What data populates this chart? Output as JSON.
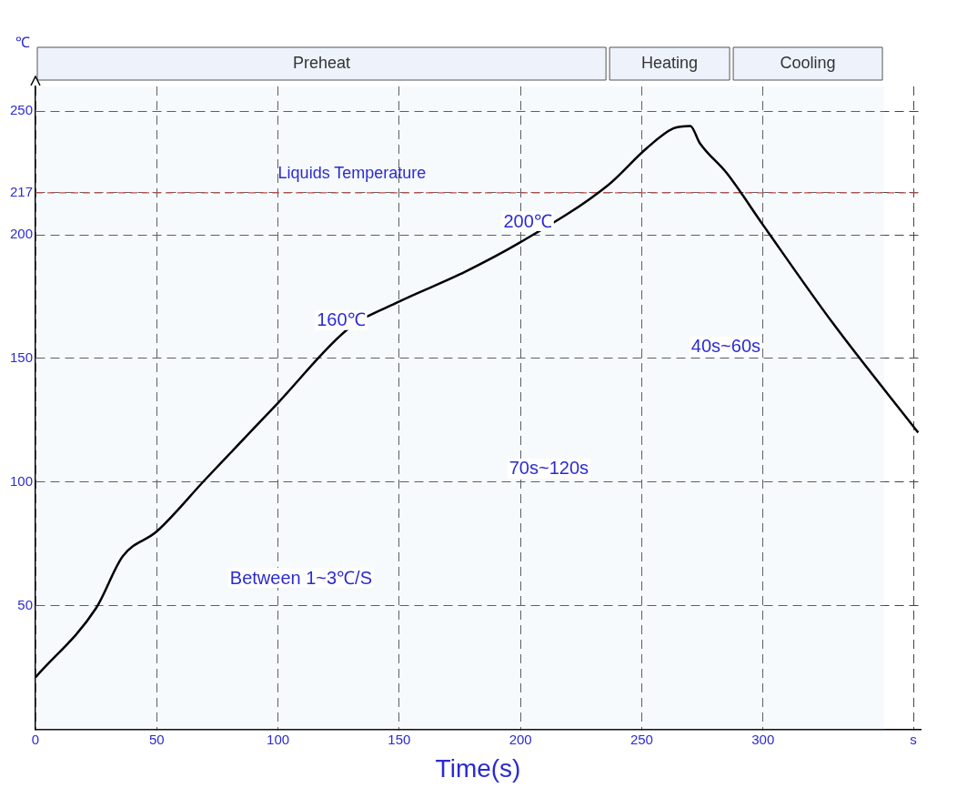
{
  "chart_data": {
    "type": "line",
    "xlabel": "Time(s)",
    "ylabel": "℃",
    "x": [
      0,
      25,
      36,
      50,
      70,
      100,
      129,
      150,
      175,
      200,
      236,
      252,
      263,
      270,
      274,
      285,
      300,
      329,
      364
    ],
    "series": [
      {
        "color": "#000000",
        "values": [
          21,
          49,
          70,
          80,
          101,
          132,
          162,
          173,
          184,
          197,
          220,
          235,
          243,
          244,
          237,
          225,
          204,
          164,
          120
        ]
      }
    ],
    "xlim": [
      0,
      365
    ],
    "xticks": [
      0,
      50,
      100,
      150,
      200,
      250,
      300,
      {
        "value": 362,
        "label": "s"
      }
    ],
    "ylim": [
      0,
      260
    ],
    "yticks": [
      50,
      100,
      150,
      200,
      217,
      250
    ],
    "grid": true,
    "marker": "none",
    "line_style": "solid",
    "ref_lines": [
      {
        "axis": "y",
        "value": 217,
        "label": "Liquids Temperature",
        "color": "#c0504d",
        "line_style": "dashed"
      }
    ],
    "bands": [
      {
        "axis": "x",
        "from": 0,
        "to": 236,
        "label": "Preheat"
      },
      {
        "axis": "x",
        "from": 236,
        "to": 287,
        "label": "Heating"
      },
      {
        "axis": "x",
        "from": 287,
        "to": 350,
        "label": "Cooling"
      }
    ],
    "annotations": [
      {
        "text": "160℃",
        "x": 129,
        "y": 160
      },
      {
        "text": "200℃",
        "x": 206,
        "y": 200
      },
      "70s~120s",
      "40s~60s",
      "Between 1~3℃/S"
    ]
  }
}
